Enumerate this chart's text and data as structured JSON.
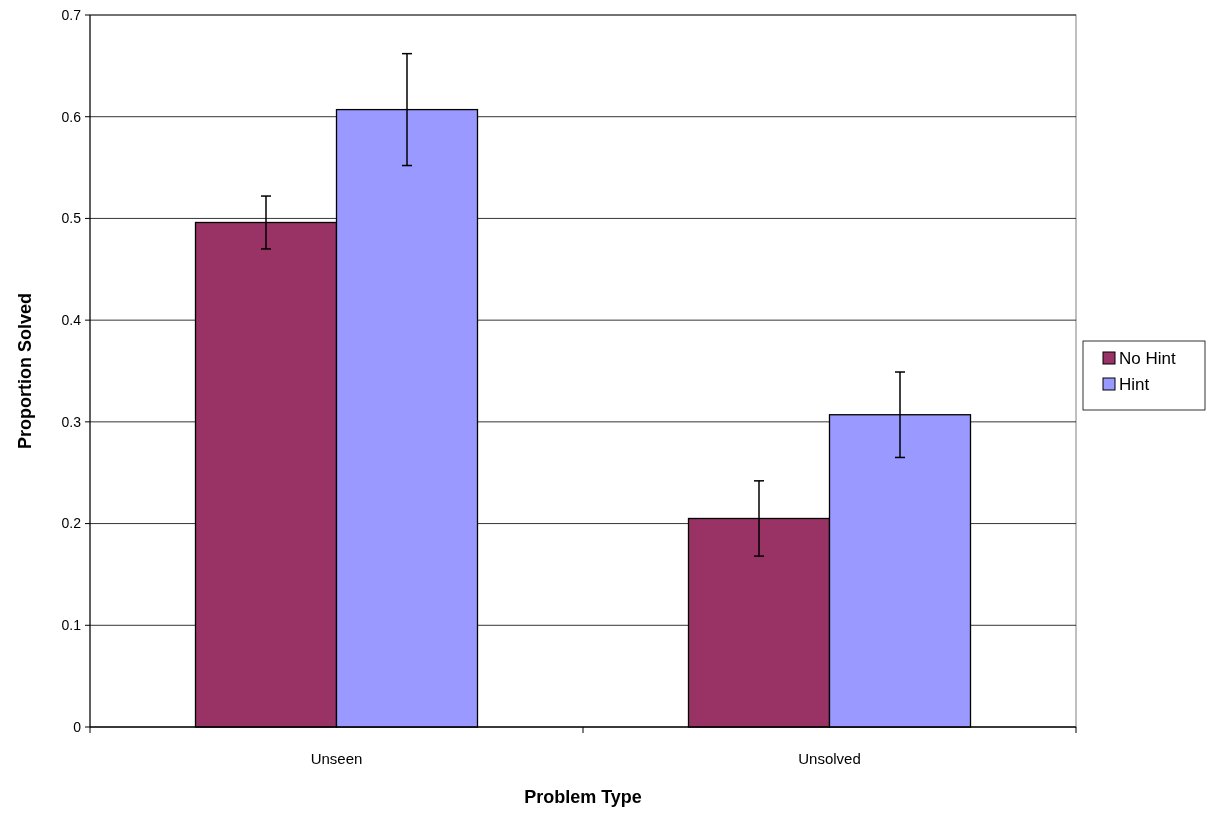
{
  "chart_data": {
    "type": "bar",
    "xlabel": "Problem Type",
    "ylabel": "Proportion Solved",
    "categories": [
      "Unseen",
      "Unsolved"
    ],
    "series": [
      {
        "name": "No Hint",
        "color": "#993366",
        "values": [
          0.496,
          0.205
        ],
        "errors": [
          0.026,
          0.037
        ]
      },
      {
        "name": "Hint",
        "color": "#9999ff",
        "values": [
          0.607,
          0.307
        ],
        "errors": [
          0.055,
          0.042
        ]
      }
    ],
    "ylim": [
      0,
      0.7
    ],
    "yticks": [
      0,
      0.1,
      0.2,
      0.3,
      0.4,
      0.5,
      0.6,
      0.7
    ],
    "grid": "y",
    "legend": "right"
  }
}
